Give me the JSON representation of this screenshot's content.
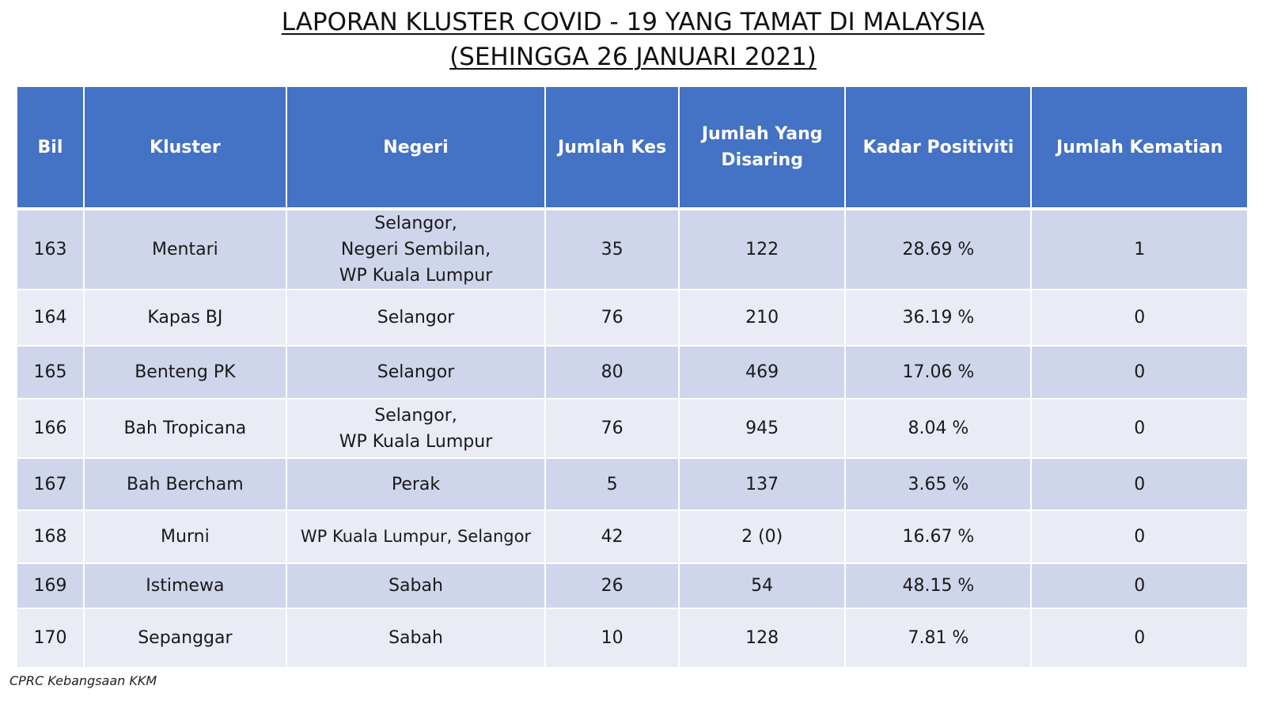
{
  "title": {
    "line1": "LAPORAN KLUSTER COVID - 19 YANG TAMAT DI MALAYSIA",
    "line2": "(SEHINGGA 26 JANUARI 2021)"
  },
  "table": {
    "headers": [
      "Bil",
      "Kluster",
      "Negeri",
      "Jumlah Kes",
      "Jumlah Yang Disaring",
      "Kadar Positiviti",
      "Jumlah Kematian"
    ],
    "rows": [
      {
        "bil": "163",
        "kluster": "Mentari",
        "negeri": [
          "Selangor,",
          "Negeri Sembilan,",
          "WP Kuala Lumpur"
        ],
        "kes": "35",
        "disaring": "122",
        "positiviti": "28.69 %",
        "kematian": "1"
      },
      {
        "bil": "164",
        "kluster": "Kapas BJ",
        "negeri": [
          "Selangor"
        ],
        "kes": "76",
        "disaring": "210",
        "positiviti": "36.19 %",
        "kematian": "0"
      },
      {
        "bil": "165",
        "kluster": "Benteng PK",
        "negeri": [
          "Selangor"
        ],
        "kes": "80",
        "disaring": "469",
        "positiviti": "17.06 %",
        "kematian": "0"
      },
      {
        "bil": "166",
        "kluster": "Bah Tropicana",
        "negeri": [
          "Selangor,",
          "WP Kuala Lumpur"
        ],
        "kes": "76",
        "disaring": "945",
        "positiviti": "8.04 %",
        "kematian": "0"
      },
      {
        "bil": "167",
        "kluster": "Bah Bercham",
        "negeri": [
          "Perak"
        ],
        "kes": "5",
        "disaring": "137",
        "positiviti": "3.65 %",
        "kematian": "0"
      },
      {
        "bil": "168",
        "kluster": "Murni",
        "negeri": [
          "WP Kuala Lumpur, Selangor"
        ],
        "kes": "42",
        "disaring": "2 (0)",
        "positiviti": "16.67 %",
        "kematian": "0"
      },
      {
        "bil": "169",
        "kluster": "Istimewa",
        "negeri": [
          "Sabah"
        ],
        "kes": "26",
        "disaring": "54",
        "positiviti": "48.15 %",
        "kematian": "0"
      },
      {
        "bil": "170",
        "kluster": "Sepanggar",
        "negeri": [
          "Sabah"
        ],
        "kes": "10",
        "disaring": "128",
        "positiviti": "7.81 %",
        "kematian": "0"
      }
    ]
  },
  "footer": "CPRC Kebangsaan KKM",
  "colors": {
    "header_bg": "#4472c4",
    "row_odd": "#cfd5ea",
    "row_even": "#e9ebf5"
  }
}
